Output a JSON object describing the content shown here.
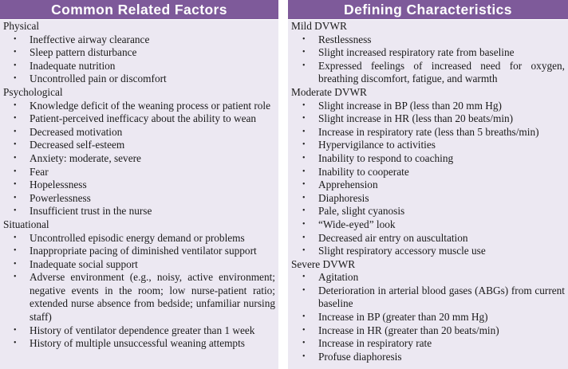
{
  "left": {
    "header": "Common Related Factors",
    "sections": [
      {
        "title": "Physical",
        "items": [
          "Ineffective airway clearance",
          "Sleep pattern disturbance",
          "Inadequate nutrition",
          "Uncontrolled pain or discomfort"
        ]
      },
      {
        "title": "Psychological",
        "items": [
          "Knowledge deficit of the weaning process or patient role",
          "Patient-perceived inefficacy about the ability to wean",
          "Decreased motivation",
          "Decreased self-esteem",
          "Anxiety: moderate, severe",
          "Fear",
          "Hopelessness",
          "Powerlessness",
          "Insufficient trust in the nurse"
        ]
      },
      {
        "title": "Situational",
        "items": [
          "Uncontrolled episodic energy demand or problems",
          "Inappropriate pacing of diminished ventilator support",
          "Inadequate social support",
          "Adverse environment (e.g., noisy, active environment; negative events in the room; low nurse-patient ratio; extended nurse absence from bedside; unfamiliar nursing staff)",
          "History of ventilator dependence greater than 1 week",
          "History of multiple unsuccessful weaning attempts"
        ]
      }
    ]
  },
  "right": {
    "header": "Defining Characteristics",
    "sections": [
      {
        "title": "Mild DVWR",
        "items": [
          "Restlessness",
          "Slight increased respiratory rate from baseline",
          "Expressed feelings of increased need for oxygen, breathing discomfort, fatigue, and warmth"
        ]
      },
      {
        "title": "Moderate DVWR",
        "items": [
          "Slight increase in BP (less than 20 mm Hg)",
          "Slight increase in HR (less than 20 beats/min)",
          "Increase in respiratory rate (less than 5 breaths/min)",
          "Hypervigilance to activities",
          "Inability to respond to coaching",
          "Inability to cooperate",
          "Apprehension",
          "Diaphoresis",
          "Pale, slight cyanosis",
          "“Wide-eyed” look",
          "Decreased air entry on auscultation",
          "Slight respiratory accessory muscle use"
        ]
      },
      {
        "title": "Severe DVWR",
        "items": [
          "Agitation",
          "Deterioration in arterial blood gases (ABGs) from current baseline",
          "Increase in BP (greater than 20 mm Hg)",
          "Increase in HR (greater than 20 beats/min)",
          "Increase in respiratory rate",
          "Profuse diaphoresis"
        ]
      }
    ]
  },
  "bullet_glyph": "•",
  "colors": {
    "header_bg": "#7e5a9a",
    "panel_bg": "#ece8f2"
  }
}
